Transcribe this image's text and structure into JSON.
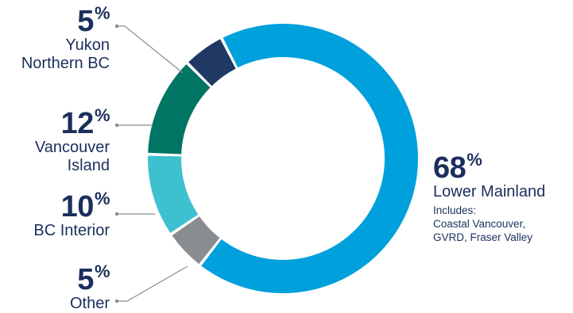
{
  "chart_data": {
    "type": "pie",
    "variant": "donut",
    "legend": "none",
    "slices": [
      {
        "value": 68,
        "percent_label": "68",
        "label_lines": [
          "Lower Mainland"
        ],
        "note_lines": [
          "Includes:",
          "Coastal Vancouver,",
          "GVRD, Fraser Valley"
        ],
        "color": "#00a0dc"
      },
      {
        "value": 5,
        "percent_label": "5",
        "label_lines": [
          "Other"
        ],
        "color": "#8a8d8f"
      },
      {
        "value": 10,
        "percent_label": "10",
        "label_lines": [
          "BC Interior"
        ],
        "color": "#3ec1cf"
      },
      {
        "value": 12,
        "percent_label": "12",
        "label_lines": [
          "Vancouver",
          "Island"
        ],
        "color": "#007563"
      },
      {
        "value": 5,
        "percent_label": "5",
        "label_lines": [
          "Yukon",
          "Northern BC"
        ],
        "color": "#1f3864"
      }
    ],
    "percent_sign": "%"
  }
}
